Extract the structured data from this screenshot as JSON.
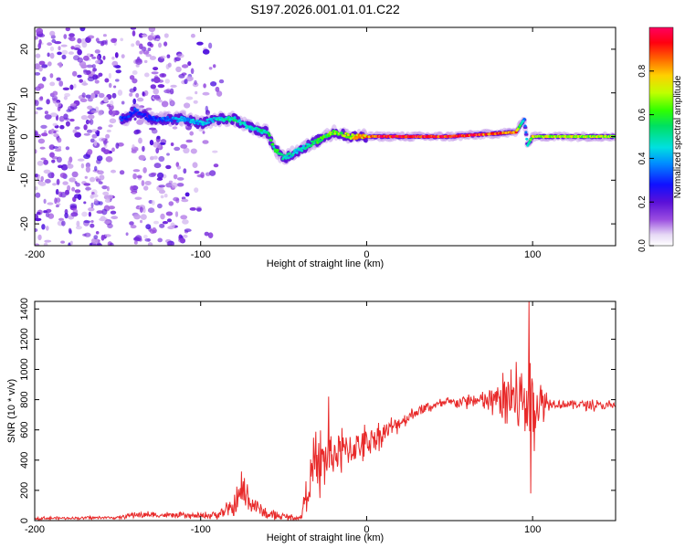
{
  "title": "S197.2026.001.01.01.C22",
  "chart_data": [
    {
      "type": "heatmap",
      "name": "spectrogram",
      "xlabel": "Height of straight line (km)",
      "ylabel": "Frequency (Hz)",
      "xlim": [
        -200,
        150
      ],
      "ylim": [
        -25,
        25
      ],
      "x_ticks": [
        -200,
        -100,
        0,
        100
      ],
      "y_ticks": [
        -20,
        -10,
        0,
        10,
        20
      ],
      "colorbar": {
        "label": "Normalized spectral amplitude",
        "range": [
          0,
          1
        ],
        "ticks": [
          0.0,
          0.2,
          0.4,
          0.6,
          0.8
        ],
        "tick_labels": [
          "0.0",
          "0.2",
          "0.4",
          "0.6",
          "0.8"
        ]
      },
      "ridge": {
        "x": [
          -145,
          -140,
          -130,
          -120,
          -110,
          -100,
          -90,
          -80,
          -70,
          -60,
          -55,
          -50,
          -45,
          -40,
          -35,
          -30,
          -25,
          -20,
          -10,
          0,
          10,
          50,
          90,
          95,
          97,
          100,
          150
        ],
        "freq": [
          4,
          6,
          4,
          4,
          4,
          3,
          4,
          4,
          2,
          1,
          -3,
          -5,
          -4,
          -3,
          -2,
          -1,
          0,
          1,
          0,
          0,
          0,
          0,
          1,
          4,
          -2,
          0,
          0
        ],
        "amplitude": [
          0.3,
          0.3,
          0.3,
          0.35,
          0.4,
          0.4,
          0.45,
          0.5,
          0.45,
          0.5,
          0.55,
          0.5,
          0.45,
          0.45,
          0.5,
          0.55,
          0.6,
          0.6,
          0.7,
          0.8,
          0.95,
          0.95,
          0.8,
          0.35,
          0.4,
          0.7,
          0.65
        ]
      }
    },
    {
      "type": "line",
      "name": "snr",
      "xlabel": "Height of straight line (km)",
      "ylabel": "SNR (10 * v/v)",
      "xlim": [
        -200,
        150
      ],
      "ylim": [
        0,
        1450
      ],
      "x_ticks": [
        -200,
        -100,
        0,
        100
      ],
      "y_ticks": [
        0,
        200,
        400,
        600,
        800,
        1000,
        1200,
        1400
      ],
      "color": "#e82a2a",
      "envelope": {
        "x": [
          -200,
          -150,
          -140,
          -100,
          -90,
          -80,
          -75,
          -70,
          -60,
          -40,
          -35,
          -30,
          -20,
          -10,
          0,
          10,
          20,
          30,
          40,
          50,
          60,
          70,
          80,
          90,
          95,
          100,
          110,
          120,
          130,
          140,
          150
        ],
        "mean": [
          15,
          20,
          40,
          30,
          40,
          80,
          200,
          120,
          40,
          15,
          250,
          380,
          440,
          470,
          520,
          580,
          650,
          720,
          760,
          780,
          790,
          790,
          800,
          790,
          800,
          780,
          780,
          770,
          770,
          760,
          760
        ],
        "noise": [
          8,
          8,
          20,
          15,
          30,
          60,
          120,
          80,
          30,
          10,
          150,
          180,
          160,
          120,
          100,
          70,
          50,
          35,
          30,
          30,
          40,
          60,
          120,
          250,
          350,
          250,
          40,
          30,
          30,
          30,
          30
        ]
      },
      "spikes": [
        {
          "x": 98,
          "y": 1450
        },
        {
          "x": 99,
          "y": 180
        },
        {
          "x": 90,
          "y": 1050
        },
        {
          "x": 87,
          "y": 1000
        },
        {
          "x": -23,
          "y": 820
        },
        {
          "x": -28,
          "y": 150
        }
      ]
    }
  ]
}
